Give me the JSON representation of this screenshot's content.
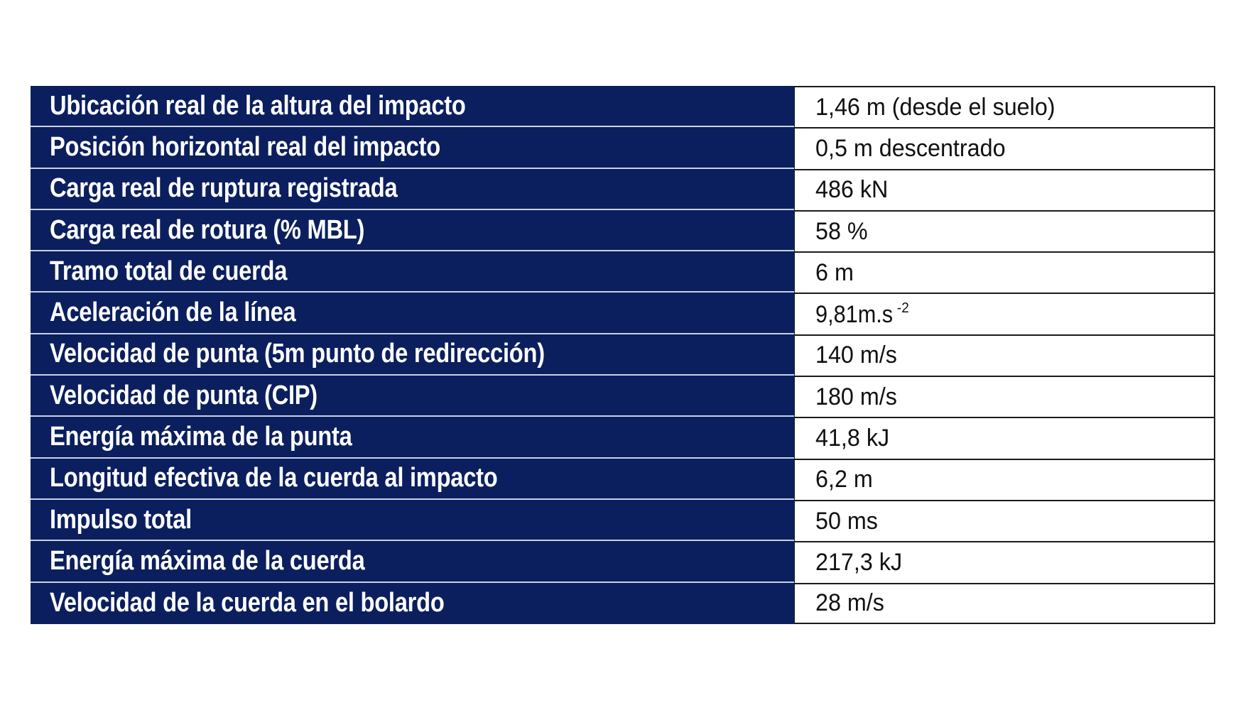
{
  "table": {
    "rows": [
      {
        "label": "Ubicación real de la altura del impacto",
        "value": "1,46 m (desde el suelo)"
      },
      {
        "label": "Posición horizontal real del impacto",
        "value": "0,5 m descentrado"
      },
      {
        "label": "Carga real de ruptura registrada",
        "value": "486 kN"
      },
      {
        "label": "Carga real de rotura (% MBL)",
        "value": "58 %"
      },
      {
        "label": "Tramo total de cuerda",
        "value": "6 m"
      },
      {
        "label": "Aceleración de la línea",
        "value": "9,81m.s",
        "value_sup": "-2"
      },
      {
        "label": "Velocidad de punta (5m punto de redirección)",
        "value": "140 m/s"
      },
      {
        "label": "Velocidad de punta (CIP)",
        "value": "180 m/s"
      },
      {
        "label": "Energía máxima de la punta",
        "value": "41,8 kJ"
      },
      {
        "label": "Longitud efectiva de la cuerda al impacto",
        "value": "6,2 m"
      },
      {
        "label": "Impulso total",
        "value": "50 ms"
      },
      {
        "label": "Energía máxima de la cuerda",
        "value": "217,3 kJ"
      },
      {
        "label": "Velocidad de la cuerda en el bolardo",
        "value": "28 m/s"
      }
    ]
  },
  "colors": {
    "label_bg": "#0b1f5e",
    "label_text": "#ffffff",
    "value_text": "#111111"
  }
}
